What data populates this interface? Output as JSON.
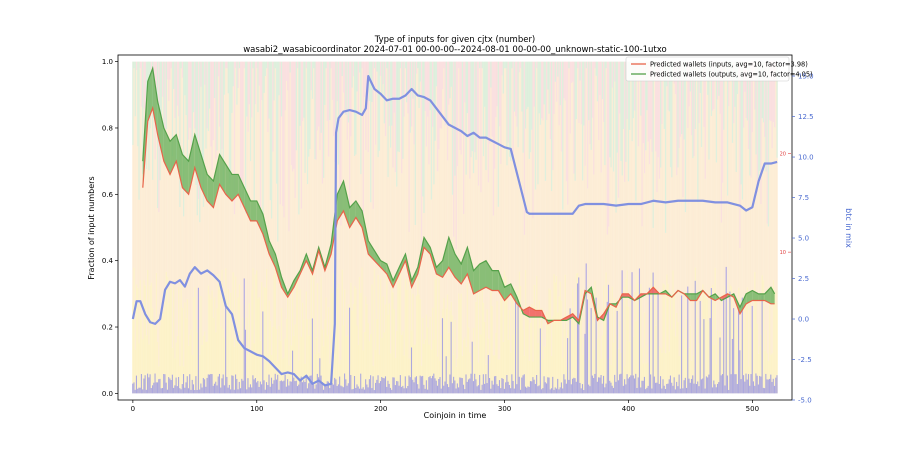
{
  "chart_data": {
    "type": "line",
    "title": "Type of inputs for given cjtx (number)",
    "subtitle": "wasabi2_wasabicoordinator 2024-07-01 00-00-00--2024-08-01 00-00-00_unknown-static-100-1utxo",
    "xlabel": "Coinjoin in time",
    "ylabel": "Fraction of input numbers",
    "y2label": "btc in mix",
    "xlim": [
      -12,
      532
    ],
    "ylim": [
      -0.02,
      1.02
    ],
    "y2lim": [
      -5,
      16.3
    ],
    "y3lim": [
      -5,
      30
    ],
    "xticks": [
      0,
      100,
      200,
      300,
      400,
      500
    ],
    "yticks": [
      0.0,
      0.2,
      0.4,
      0.6,
      0.8,
      1.0
    ],
    "y2ticks": [
      -5.0,
      -2.5,
      0.0,
      2.5,
      5.0,
      7.5,
      10.0,
      12.5,
      15.0
    ],
    "y3ticks": [
      10,
      20
    ],
    "grid": false,
    "legend_position": "top-right",
    "colors": {
      "inputs_line": "#e8644a",
      "outputs_line": "#55a14a",
      "fill_green": "#74b566",
      "fill_red": "#f05a5a",
      "btc_line": "#8090e0",
      "bars_blue": "#6a6af0",
      "bg_yellow": "#fbe9a0",
      "bg_orange": "#fbd9a8",
      "bg_pink": "#f6c9c9",
      "bg_green": "#c5e3c2"
    },
    "series": [
      {
        "name": "Predicted wallets (inputs, avg=10, factor=3.98)",
        "axis": "left",
        "x": [
          8,
          12,
          16,
          20,
          25,
          30,
          35,
          40,
          45,
          50,
          55,
          60,
          65,
          70,
          75,
          80,
          85,
          90,
          95,
          100,
          105,
          110,
          115,
          120,
          125,
          130,
          135,
          140,
          145,
          150,
          155,
          160,
          165,
          170,
          175,
          180,
          185,
          190,
          195,
          200,
          205,
          210,
          215,
          220,
          225,
          230,
          235,
          240,
          245,
          250,
          255,
          260,
          265,
          270,
          275,
          280,
          285,
          290,
          295,
          300,
          305,
          310,
          315,
          320,
          325,
          330,
          335,
          340,
          345,
          350,
          355,
          360,
          365,
          370,
          375,
          380,
          385,
          390,
          395,
          400,
          405,
          410,
          415,
          420,
          425,
          430,
          435,
          440,
          445,
          450,
          455,
          460,
          465,
          470,
          475,
          480,
          485,
          490,
          495,
          500,
          505,
          510,
          515,
          518
        ],
        "y": [
          0.62,
          0.82,
          0.86,
          0.78,
          0.7,
          0.66,
          0.7,
          0.62,
          0.6,
          0.68,
          0.62,
          0.58,
          0.56,
          0.63,
          0.6,
          0.58,
          0.6,
          0.56,
          0.52,
          0.52,
          0.48,
          0.42,
          0.38,
          0.32,
          0.29,
          0.32,
          0.36,
          0.4,
          0.36,
          0.43,
          0.37,
          0.42,
          0.52,
          0.55,
          0.5,
          0.53,
          0.5,
          0.42,
          0.4,
          0.38,
          0.36,
          0.32,
          0.36,
          0.4,
          0.32,
          0.36,
          0.44,
          0.42,
          0.36,
          0.35,
          0.38,
          0.35,
          0.33,
          0.36,
          0.3,
          0.31,
          0.32,
          0.31,
          0.31,
          0.28,
          0.3,
          0.27,
          0.25,
          0.26,
          0.25,
          0.25,
          0.21,
          0.22,
          0.22,
          0.23,
          0.24,
          0.22,
          0.31,
          0.3,
          0.22,
          0.24,
          0.27,
          0.26,
          0.3,
          0.3,
          0.28,
          0.3,
          0.3,
          0.32,
          0.3,
          0.3,
          0.29,
          0.31,
          0.3,
          0.28,
          0.28,
          0.31,
          0.29,
          0.28,
          0.29,
          0.3,
          0.29,
          0.24,
          0.27,
          0.28,
          0.28,
          0.28,
          0.27,
          0.27
        ]
      },
      {
        "name": "Predicted wallets (outputs, avg=10, factor=4.05)",
        "axis": "left",
        "x": [
          8,
          12,
          16,
          20,
          25,
          30,
          35,
          40,
          45,
          50,
          55,
          60,
          65,
          70,
          75,
          80,
          85,
          90,
          95,
          100,
          105,
          110,
          115,
          120,
          125,
          130,
          135,
          140,
          145,
          150,
          155,
          160,
          165,
          170,
          175,
          180,
          185,
          190,
          195,
          200,
          205,
          210,
          215,
          220,
          225,
          230,
          235,
          240,
          245,
          250,
          255,
          260,
          265,
          270,
          275,
          280,
          285,
          290,
          295,
          300,
          305,
          310,
          315,
          320,
          325,
          330,
          335,
          340,
          345,
          350,
          355,
          360,
          365,
          370,
          375,
          380,
          385,
          390,
          395,
          400,
          405,
          410,
          415,
          420,
          425,
          430,
          435,
          440,
          445,
          450,
          455,
          460,
          465,
          470,
          475,
          480,
          485,
          490,
          495,
          500,
          505,
          510,
          515,
          518
        ],
        "y": [
          0.7,
          0.94,
          0.98,
          0.88,
          0.8,
          0.76,
          0.78,
          0.72,
          0.7,
          0.78,
          0.72,
          0.66,
          0.64,
          0.72,
          0.69,
          0.66,
          0.66,
          0.62,
          0.58,
          0.58,
          0.54,
          0.46,
          0.42,
          0.35,
          0.3,
          0.34,
          0.37,
          0.42,
          0.37,
          0.44,
          0.38,
          0.45,
          0.6,
          0.64,
          0.56,
          0.58,
          0.55,
          0.46,
          0.43,
          0.4,
          0.39,
          0.34,
          0.38,
          0.42,
          0.34,
          0.38,
          0.47,
          0.44,
          0.38,
          0.4,
          0.47,
          0.42,
          0.39,
          0.44,
          0.37,
          0.39,
          0.4,
          0.37,
          0.37,
          0.32,
          0.33,
          0.29,
          0.24,
          0.23,
          0.23,
          0.23,
          0.22,
          0.22,
          0.22,
          0.22,
          0.23,
          0.21,
          0.3,
          0.32,
          0.23,
          0.22,
          0.27,
          0.27,
          0.29,
          0.29,
          0.28,
          0.29,
          0.3,
          0.3,
          0.3,
          0.31,
          0.29,
          0.31,
          0.3,
          0.3,
          0.3,
          0.31,
          0.29,
          0.3,
          0.28,
          0.29,
          0.3,
          0.26,
          0.3,
          0.31,
          0.3,
          0.3,
          0.32,
          0.3
        ]
      },
      {
        "name": "",
        "axis": "right",
        "x": [
          0,
          3,
          6,
          10,
          14,
          18,
          22,
          26,
          30,
          34,
          38,
          42,
          46,
          50,
          55,
          60,
          65,
          70,
          75,
          80,
          85,
          90,
          95,
          100,
          105,
          110,
          115,
          120,
          125,
          130,
          135,
          140,
          145,
          150,
          155,
          160,
          163,
          164,
          166,
          170,
          175,
          180,
          185,
          188,
          190,
          195,
          200,
          205,
          210,
          215,
          220,
          225,
          230,
          235,
          240,
          245,
          250,
          255,
          260,
          265,
          270,
          275,
          280,
          285,
          290,
          295,
          300,
          305,
          310,
          315,
          318,
          320,
          330,
          340,
          350,
          355,
          360,
          365,
          370,
          380,
          390,
          400,
          410,
          420,
          430,
          440,
          450,
          460,
          470,
          480,
          490,
          495,
          500,
          505,
          510,
          515,
          520
        ],
        "y": [
          0.0,
          1.1,
          1.1,
          0.3,
          -0.2,
          -0.3,
          0.0,
          1.8,
          2.3,
          2.2,
          2.4,
          2.0,
          2.8,
          3.2,
          2.8,
          3.0,
          2.7,
          2.3,
          0.8,
          0.3,
          -1.3,
          -1.8,
          -2.0,
          -2.2,
          -2.3,
          -2.6,
          -3.0,
          -3.4,
          -3.3,
          -3.4,
          -3.8,
          -3.5,
          -4.0,
          -3.8,
          -4.1,
          -4.0,
          -0.3,
          11.5,
          12.4,
          12.8,
          12.9,
          12.8,
          12.6,
          13.0,
          15.0,
          14.2,
          13.9,
          13.5,
          13.6,
          13.6,
          13.8,
          14.2,
          13.8,
          13.7,
          13.5,
          13.0,
          12.5,
          12.0,
          11.8,
          11.6,
          11.3,
          11.5,
          11.2,
          11.2,
          11.0,
          10.8,
          10.6,
          10.5,
          9.0,
          7.5,
          6.6,
          6.5,
          6.5,
          6.5,
          6.5,
          6.5,
          7.0,
          7.1,
          7.1,
          7.1,
          7.0,
          7.1,
          7.1,
          7.3,
          7.2,
          7.3,
          7.3,
          7.3,
          7.2,
          7.2,
          7.0,
          6.7,
          6.9,
          8.5,
          9.6,
          9.6,
          9.7
        ]
      }
    ]
  }
}
